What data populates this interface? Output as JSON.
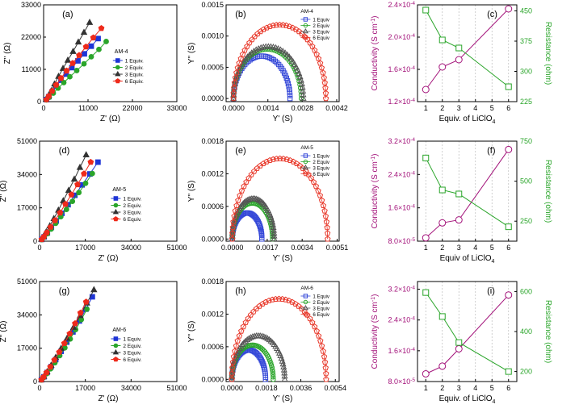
{
  "colors": {
    "blue": "#1f35d6",
    "green": "#2aa52a",
    "dark": "#333333",
    "red": "#ee2a1b",
    "purple": "#a3127a",
    "rgreen": "#2aa52a",
    "semi_blue": "#3548d8",
    "semi_green": "#2aa52a",
    "semi_dark": "#555555",
    "semi_red": "#e8392b"
  },
  "chart_data": [
    {
      "id": "a",
      "panel_label": "(a)",
      "type": "scatter",
      "xlabel": "Z' (Ω)",
      "ylabel": "Z'' (Ω)",
      "xlim": [
        0,
        33000
      ],
      "ylim": [
        0,
        33000
      ],
      "xticks": [
        "0",
        "11000",
        "22000",
        "33000"
      ],
      "yticks": [
        "0",
        "11000",
        "22000",
        "33000"
      ],
      "legend_title": "AM-4",
      "series": [
        {
          "name": "1 Equiv.",
          "x": [
            700,
            1300,
            2100,
            3100,
            4300,
            5600,
            7000,
            8500,
            10100,
            11800,
            13500
          ],
          "y": [
            700,
            1700,
            3300,
            5200,
            7300,
            9400,
            11600,
            13900,
            16300,
            18900,
            21500
          ]
        },
        {
          "name": "2 Equiv.",
          "x": [
            700,
            1400,
            2400,
            3600,
            5000,
            6500,
            8200,
            10000,
            11800,
            13700,
            15500
          ],
          "y": [
            600,
            1500,
            2900,
            4600,
            6500,
            8500,
            10600,
            12900,
            15300,
            17800,
            20500
          ]
        },
        {
          "name": "3 Equiv.",
          "x": [
            600,
            1200,
            1900,
            2700,
            3700,
            4800,
            6000,
            7300,
            8600,
            10000,
            11400
          ],
          "y": [
            800,
            2000,
            3700,
            6000,
            8600,
            11300,
            14100,
            17100,
            20300,
            23600,
            27000
          ]
        },
        {
          "name": "6 Equiv.",
          "x": [
            700,
            1300,
            2100,
            3100,
            4300,
            5700,
            7200,
            8800,
            10500,
            12300,
            14300
          ],
          "y": [
            700,
            1900,
            3600,
            5700,
            8000,
            10500,
            13100,
            15800,
            18700,
            21800,
            25000
          ]
        }
      ]
    },
    {
      "id": "b",
      "panel_label": "(b)",
      "type": "scatter",
      "xlabel": "Y' (S)",
      "ylabel": "Y'' (S)",
      "xlim": [
        -0.0003,
        0.0043
      ],
      "ylim": [
        -5e-05,
        0.0015
      ],
      "xticks": [
        "0.0000",
        "0.0014",
        "0.0028",
        "0.0042"
      ],
      "yticks": [
        "0.0000",
        "0.0005",
        "0.0010",
        "0.0015"
      ],
      "legend_title": "AM-4",
      "series": [
        {
          "name": "1 Equiv",
          "center": 0.00115,
          "radius": 0.00115,
          "height": 0.00068
        },
        {
          "name": "2 Equiv",
          "center": 0.00138,
          "radius": 0.00138,
          "height": 0.00079
        },
        {
          "name": "3 Equiv",
          "center": 0.00142,
          "radius": 0.00142,
          "height": 0.00083
        },
        {
          "name": "6 Equiv",
          "center": 0.00188,
          "radius": 0.00188,
          "height": 0.00118
        }
      ]
    },
    {
      "id": "c",
      "panel_label": "(c)",
      "type": "line",
      "xlabel": "Equiv. of LiClO4",
      "ylabel": "Conductivity (S cm-1)",
      "y2label": "Resistance (ohm)",
      "x": [
        1,
        2,
        3,
        6
      ],
      "xlim": [
        0.5,
        6.5
      ],
      "xticks": [
        "1",
        "2",
        "3",
        "4",
        "5",
        "6"
      ],
      "ylim": [
        0.00012,
        0.00024
      ],
      "yticks": [
        "1.2×10-4",
        "1.6×10-4",
        "2.0×10-4",
        "2.4×10-4"
      ],
      "y2lim": [
        225,
        465
      ],
      "y2ticks": [
        "225",
        "300",
        "375",
        "450"
      ],
      "conductivity": [
        0.000135,
        0.000163,
        0.000172,
        0.000235
      ],
      "resistance": [
        452,
        378,
        358,
        262
      ]
    },
    {
      "id": "d",
      "panel_label": "(d)",
      "type": "scatter",
      "xlabel": "Z' (Ω)",
      "ylabel": "Z'' (Ω)",
      "xlim": [
        0,
        51000
      ],
      "ylim": [
        0,
        51000
      ],
      "xticks": [
        "0",
        "17000",
        "34000",
        "51000"
      ],
      "yticks": [
        "0",
        "17000",
        "34000",
        "51000"
      ],
      "legend_title": "AM-5",
      "series": [
        {
          "name": "1 Equiv.",
          "x": [
            800,
            1700,
            2900,
            4400,
            6200,
            8300,
            10600,
            13100,
            15800,
            18700,
            21700
          ],
          "y": [
            900,
            2200,
            4200,
            7000,
            10300,
            14200,
            18600,
            23400,
            28700,
            34300,
            40300
          ]
        },
        {
          "name": "2 Equiv.",
          "x": [
            800,
            1700,
            2900,
            4300,
            6000,
            7900,
            10000,
            12200,
            14600,
            17100,
            19600
          ],
          "y": [
            800,
            2000,
            3800,
            6200,
            9100,
            12500,
            16200,
            20300,
            24800,
            29500,
            34500
          ]
        },
        {
          "name": "3 Equiv.",
          "x": [
            700,
            1500,
            2500,
            3800,
            5300,
            7000,
            8800,
            10800,
            12900,
            15000,
            17300
          ],
          "y": [
            1000,
            2500,
            4800,
            7800,
            11500,
            15800,
            20600,
            25900,
            31600,
            37600,
            44000
          ]
        },
        {
          "name": "6 Equiv.",
          "x": [
            800,
            1600,
            2700,
            4100,
            5700,
            7600,
            9600,
            11800,
            14100,
            16500,
            19000
          ],
          "y": [
            900,
            2300,
            4400,
            7200,
            10600,
            14500,
            18900,
            23700,
            28900,
            34400,
            40300
          ]
        }
      ]
    },
    {
      "id": "e",
      "panel_label": "(e)",
      "type": "scatter",
      "xlabel": "Y' (S)",
      "ylabel": "Y'' (S)",
      "xlim": [
        -0.0003,
        0.0052
      ],
      "ylim": [
        -4e-05,
        0.0018
      ],
      "xticks": [
        "0.0000",
        "0.0017",
        "0.0034",
        "0.0051"
      ],
      "yticks": [
        "0.0000",
        "0.0006",
        "0.0012",
        "0.0018"
      ],
      "legend_title": "AM-5",
      "series": [
        {
          "name": "1 Equiv",
          "center": 0.00072,
          "radius": 0.00072,
          "height": 0.00048
        },
        {
          "name": "2 Equiv",
          "center": 0.00098,
          "radius": 0.00098,
          "height": 0.00066
        },
        {
          "name": "3 Equiv",
          "center": 0.00102,
          "radius": 0.00102,
          "height": 0.00074
        },
        {
          "name": "6 Equiv",
          "center": 0.00232,
          "radius": 0.00232,
          "height": 0.00148
        }
      ]
    },
    {
      "id": "f",
      "panel_label": "(f)",
      "type": "line",
      "xlabel": "Equiv of LiClO4",
      "ylabel": "Conductivity (S cm-1)",
      "y2label": "Resistance (ohm)",
      "x": [
        1,
        2,
        3,
        6
      ],
      "xlim": [
        0.5,
        6.5
      ],
      "xticks": [
        "1",
        "2",
        "3",
        "4",
        "5",
        "6"
      ],
      "ylim": [
        8e-05,
        0.00032
      ],
      "yticks": [
        "8.0×10-5",
        "1.6×10-4",
        "2.4×10-4",
        "3.2×10-4"
      ],
      "y2lim": [
        125,
        750
      ],
      "y2ticks": [
        "250",
        "500",
        "750"
      ],
      "conductivity": [
        8.8e-05,
        0.000124,
        0.000131,
        0.0003
      ],
      "resistance": [
        645,
        445,
        420,
        215
      ]
    },
    {
      "id": "g",
      "panel_label": "(g)",
      "type": "scatter",
      "xlabel": "Z' (Ω)",
      "ylabel": "Z'' (Ω)",
      "xlim": [
        0,
        51000
      ],
      "ylim": [
        0,
        51000
      ],
      "xticks": [
        "0",
        "17000",
        "34000",
        "51000"
      ],
      "yticks": [
        "0",
        "17000",
        "34000",
        "51000"
      ],
      "legend_title": "AM-6",
      "series": [
        {
          "name": "1 Equiv.",
          "x": [
            700,
            1600,
            2800,
            4300,
            6000,
            8000,
            10100,
            12400,
            14800,
            17200,
            19600
          ],
          "y": [
            900,
            2400,
            4600,
            7600,
            11200,
            15400,
            20100,
            25300,
            30900,
            36900,
            43200
          ]
        },
        {
          "name": "2 Equiv.",
          "x": [
            700,
            1600,
            2700,
            4100,
            5700,
            7500,
            9400,
            11400,
            13400,
            15500,
            17600
          ],
          "y": [
            800,
            2100,
            4000,
            6500,
            9600,
            13200,
            17200,
            21700,
            26500,
            31600,
            36900
          ]
        },
        {
          "name": "3 Equiv.",
          "x": [
            700,
            1600,
            2800,
            4300,
            6000,
            8000,
            10200,
            12600,
            15100,
            17600,
            20200
          ],
          "y": [
            1000,
            2600,
            5000,
            8300,
            12300,
            16900,
            22000,
            27600,
            33600,
            40000,
            46800
          ]
        },
        {
          "name": "6 Equiv.",
          "x": [
            700,
            1500,
            2600,
            4000,
            5500,
            7300,
            9200,
            11200,
            13200,
            15200,
            17300
          ],
          "y": [
            900,
            2400,
            4600,
            7500,
            11000,
            15000,
            19500,
            24400,
            29600,
            35000,
            40600
          ]
        }
      ]
    },
    {
      "id": "h",
      "panel_label": "(h)",
      "type": "scatter",
      "xlabel": "Y' (S)",
      "ylabel": "Y'' (S)",
      "xlim": [
        -0.0003,
        0.0056
      ],
      "ylim": [
        -4e-05,
        0.0018
      ],
      "xticks": [
        "0.0000",
        "0.0018",
        "0.0036",
        "0.0054"
      ],
      "yticks": [
        "0.0000",
        "0.0006",
        "0.0012",
        "0.0018"
      ],
      "legend_title": "AM-6",
      "series": [
        {
          "name": "1 Equiv",
          "center": 0.00088,
          "radius": 0.00088,
          "height": 0.00054
        },
        {
          "name": "2 Equiv",
          "center": 0.00108,
          "radius": 0.00108,
          "height": 0.00063
        },
        {
          "name": "3 Equiv",
          "center": 0.00138,
          "radius": 0.00138,
          "height": 0.0008
        },
        {
          "name": "6 Equiv",
          "center": 0.00246,
          "radius": 0.00246,
          "height": 0.00148
        }
      ]
    },
    {
      "id": "i",
      "panel_label": "(i)",
      "type": "line",
      "xlabel": "Equiv. of LiClO4",
      "ylabel": "Conductivity (S cm-1)",
      "y2label": "Resistance (ohm)",
      "x": [
        1,
        2,
        3,
        6
      ],
      "xlim": [
        0.5,
        6.5
      ],
      "xticks": [
        "1",
        "2",
        "3",
        "4",
        "5",
        "6"
      ],
      "ylim": [
        8e-05,
        0.00034
      ],
      "yticks": [
        "8.0×10-5",
        "1.6×10-4",
        "2.4×10-4",
        "3.2×10-4"
      ],
      "y2lim": [
        150,
        650
      ],
      "y2ticks": [
        "200",
        "400",
        "600"
      ],
      "conductivity": [
        0.0001,
        0.00012,
        0.000165,
        0.000305
      ],
      "resistance": [
        595,
        475,
        345,
        200
      ]
    }
  ]
}
